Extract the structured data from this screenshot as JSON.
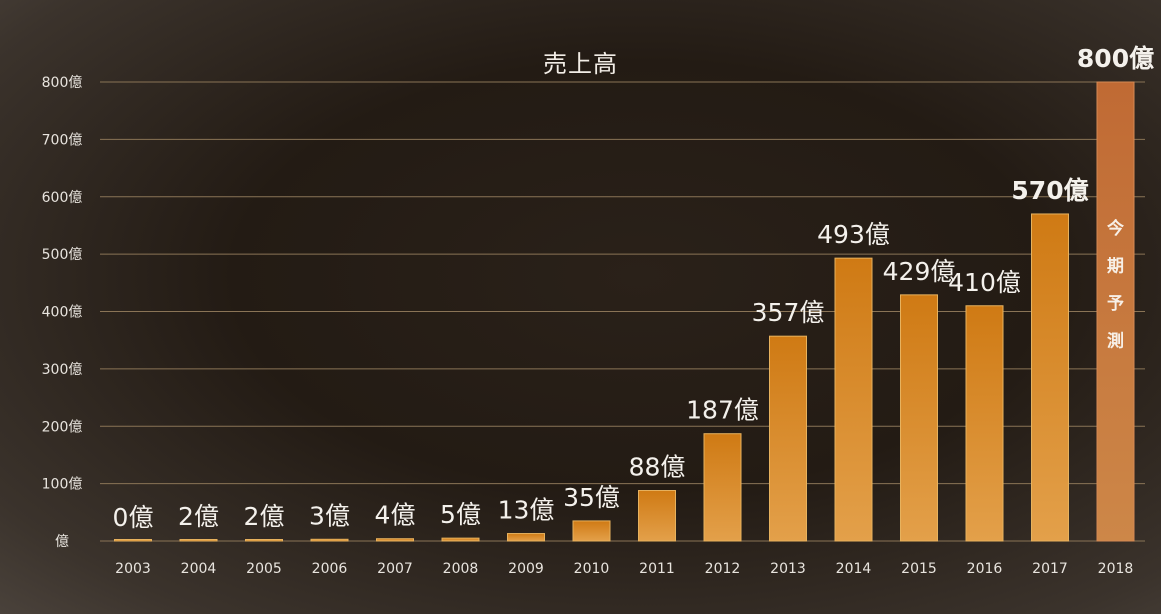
{
  "chart_data": {
    "type": "bar",
    "title": "売上高",
    "categories": [
      "2003",
      "2004",
      "2005",
      "2006",
      "2007",
      "2008",
      "2009",
      "2010",
      "2011",
      "2012",
      "2013",
      "2014",
      "2015",
      "2016",
      "2017",
      "2018"
    ],
    "values": [
      0,
      2,
      2,
      3,
      4,
      5,
      13,
      35,
      88,
      187,
      357,
      493,
      429,
      410,
      570,
      800
    ],
    "data_labels": [
      "0億",
      "2億",
      "2億",
      "3億",
      "4億",
      "5億",
      "13億",
      "35億",
      "88億",
      "187億",
      "357億",
      "493億",
      "429億",
      "410億",
      "570億",
      "800億"
    ],
    "y_ticks": [
      0,
      100,
      200,
      300,
      400,
      500,
      600,
      700,
      800
    ],
    "y_tick_labels": [
      "億",
      "100億",
      "200億",
      "300億",
      "400億",
      "500億",
      "600億",
      "700億",
      "800億"
    ],
    "ylim": [
      0,
      800
    ],
    "grid": true,
    "forecast": {
      "category": "2018",
      "label_chars": [
        "今",
        "期",
        "予",
        "測"
      ]
    },
    "colors": {
      "bar": "#d2811f",
      "bar_forecast": "#c46e37",
      "grid": "#8a7456"
    }
  }
}
